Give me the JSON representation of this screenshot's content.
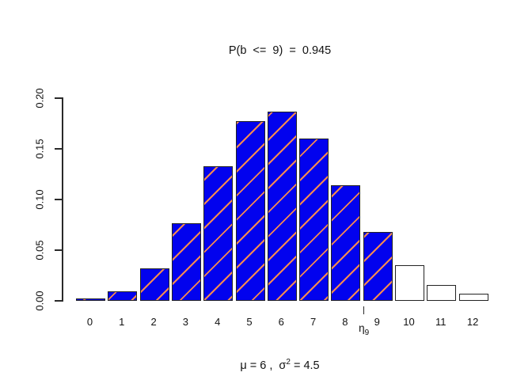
{
  "chart_data": {
    "type": "bar",
    "title": "P(b  <=  9)  =  0.945",
    "xlabel_parts": {
      "pre": "μ = 6 ,  σ",
      "sup": "2",
      "post": " = 4.5"
    },
    "ylabel": "",
    "categories": [
      "0",
      "1",
      "2",
      "3",
      "4",
      "5",
      "6",
      "7",
      "8",
      "9",
      "10",
      "11",
      "12"
    ],
    "values": [
      0.001,
      0.008,
      0.0308,
      0.0752,
      0.1316,
      0.1755,
      0.1853,
      0.1588,
      0.1125,
      0.0667,
      0.0333,
      0.0141,
      0.0051
    ],
    "highlighted": [
      true,
      true,
      true,
      true,
      true,
      true,
      true,
      true,
      true,
      true,
      false,
      false,
      false
    ],
    "ylim": [
      0,
      0.2
    ],
    "yticks": [
      "0.00",
      "0.05",
      "0.10",
      "0.15",
      "0.20"
    ],
    "grid": "off",
    "legend": "none",
    "bar_fill": "#0202ee",
    "bar_hatch_color": "#f68a50",
    "bar_border_color": "#232323",
    "unfilled_bar_fill": "#ffffff",
    "quantile_marker": {
      "symbol": "η",
      "subscript": "9",
      "bar_index": 9
    }
  }
}
